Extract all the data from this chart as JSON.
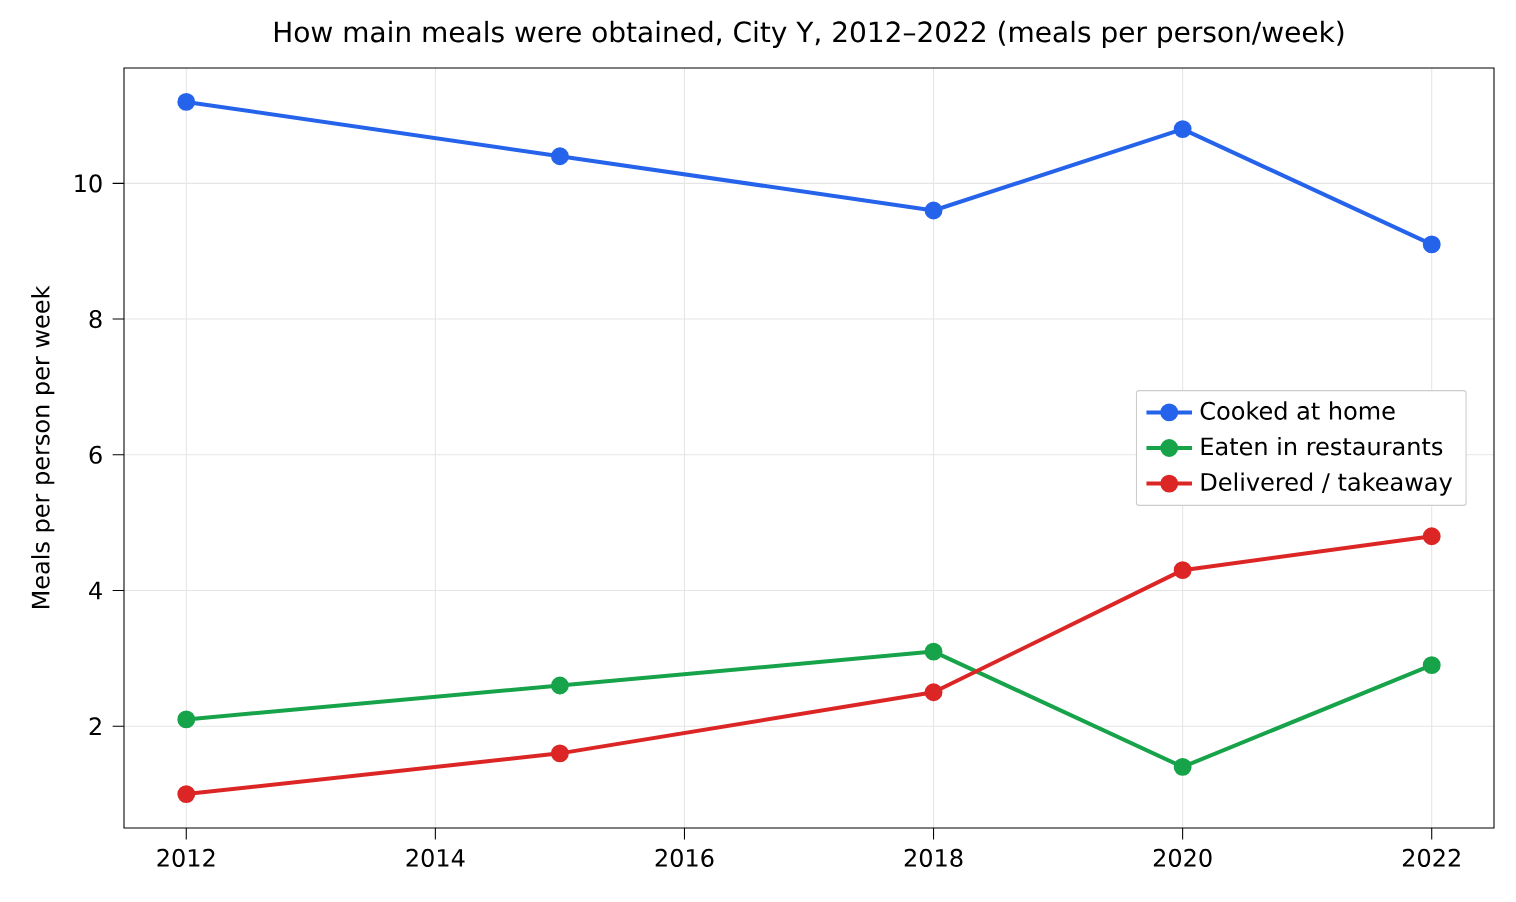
{
  "chart_data": {
    "type": "line",
    "title": "How main meals were obtained, City Y, 2012–2022 (meals per person/week)",
    "ylabel": "Meals per person per week",
    "x": [
      2012,
      2015,
      2018,
      2020,
      2022
    ],
    "series": [
      {
        "name": "Cooked at home",
        "color": "#2563eb",
        "values": [
          11.2,
          10.4,
          9.6,
          10.8,
          9.1
        ]
      },
      {
        "name": "Eaten in restaurants",
        "color": "#16a34a",
        "values": [
          2.1,
          2.6,
          3.1,
          1.4,
          2.9
        ]
      },
      {
        "name": "Delivered / takeaway",
        "color": "#dc2626",
        "values": [
          1.0,
          1.6,
          2.5,
          4.3,
          4.8
        ]
      }
    ],
    "xlim": [
      2011.5,
      2022.5
    ],
    "ylim": [
      0.5,
      11.7
    ],
    "xticks": [
      2012,
      2014,
      2016,
      2018,
      2020,
      2022
    ],
    "yticks": [
      2,
      4,
      6,
      8,
      10
    ],
    "grid": true,
    "legend": "right",
    "marker": "circle",
    "line_style": "solid"
  }
}
